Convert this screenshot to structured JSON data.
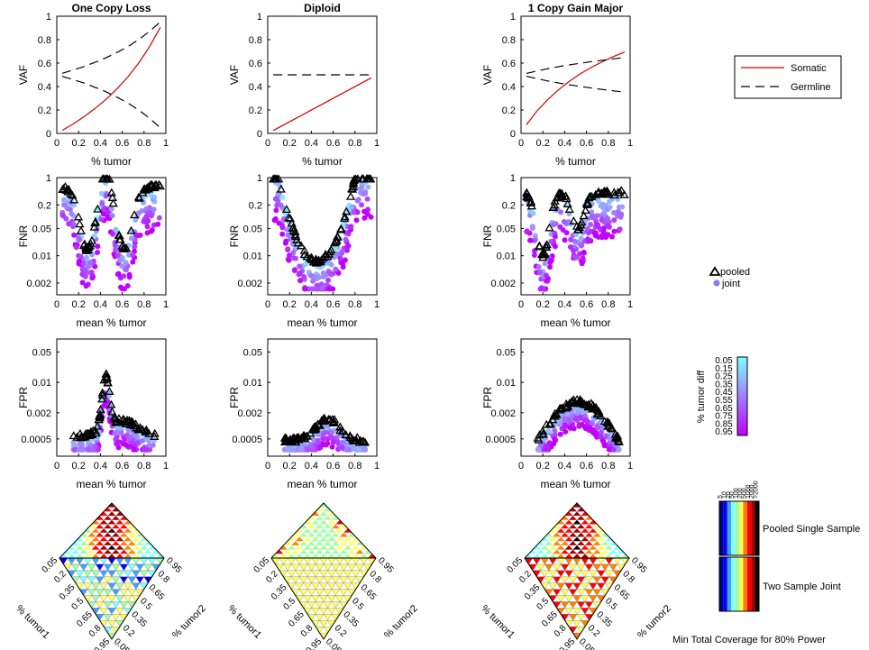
{
  "legend": {
    "somatic_label": "Somatic",
    "germline_label": "Germline",
    "pooled_label": "pooled",
    "joint_label": "joint",
    "somatic_color": "#d00000",
    "germline_color": "#000000"
  },
  "colorbar": {
    "title": "% tumor diff",
    "ticks": [
      "0.05",
      "0.15",
      "0.25",
      "0.35",
      "0.45",
      "0.55",
      "0.65",
      "0.75",
      "0.85",
      "0.95"
    ],
    "colors": [
      "#80ffff",
      "#c000ff"
    ]
  },
  "coverage_key": {
    "ticks": [
      "5",
      "10",
      "20",
      "50",
      "100",
      "200",
      "500",
      "1000",
      "2000",
      ">2000"
    ],
    "row1_label": "Pooled Single Sample",
    "row2_label": "Two Sample Joint",
    "footer": "Min Total Coverage for 80% Power",
    "colors": [
      "#000080",
      "#0000ff",
      "#40a0ff",
      "#80ffff",
      "#a0ffa0",
      "#ffff60",
      "#ff8000",
      "#ff0000",
      "#a00000",
      "#000000"
    ]
  },
  "chart_data": [
    {
      "type": "line",
      "panel": "vaf",
      "column": 0,
      "title": "One Copy Loss",
      "xlabel": "% tumor",
      "ylabel": "VAF",
      "xlim": [
        0,
        1
      ],
      "ylim": [
        0,
        1
      ],
      "xticks": [
        "0",
        "0.2",
        "0.4",
        "0.6",
        "0.8",
        "1"
      ],
      "yticks": [
        "0",
        "0.2",
        "0.4",
        "0.6",
        "0.8",
        "1"
      ],
      "x": [
        0.05,
        0.15,
        0.25,
        0.35,
        0.45,
        0.55,
        0.65,
        0.75,
        0.85,
        0.95
      ],
      "series": [
        {
          "name": "Somatic",
          "values": [
            0.026,
            0.081,
            0.143,
            0.212,
            0.29,
            0.379,
            0.481,
            0.6,
            0.739,
            0.905
          ]
        },
        {
          "name": "Germline upper",
          "values": [
            0.513,
            0.541,
            0.571,
            0.606,
            0.645,
            0.69,
            0.74,
            0.8,
            0.87,
            0.952
          ]
        },
        {
          "name": "Germline lower",
          "values": [
            0.487,
            0.459,
            0.429,
            0.394,
            0.355,
            0.31,
            0.26,
            0.2,
            0.13,
            0.048
          ]
        }
      ]
    },
    {
      "type": "line",
      "panel": "vaf",
      "column": 1,
      "title": "Diploid",
      "xlabel": "% tumor",
      "ylabel": "VAF",
      "xlim": [
        0,
        1
      ],
      "ylim": [
        0,
        1
      ],
      "xticks": [
        "0",
        "0.2",
        "0.4",
        "0.6",
        "0.8",
        "1"
      ],
      "yticks": [
        "0",
        "0.2",
        "0.4",
        "0.6",
        "0.8",
        "1"
      ],
      "x": [
        0.05,
        0.15,
        0.25,
        0.35,
        0.45,
        0.55,
        0.65,
        0.75,
        0.85,
        0.95
      ],
      "series": [
        {
          "name": "Somatic",
          "values": [
            0.025,
            0.075,
            0.125,
            0.175,
            0.225,
            0.275,
            0.325,
            0.375,
            0.425,
            0.475
          ]
        },
        {
          "name": "Germline",
          "values": [
            0.5,
            0.5,
            0.5,
            0.5,
            0.5,
            0.5,
            0.5,
            0.5,
            0.5,
            0.5
          ]
        }
      ]
    },
    {
      "type": "line",
      "panel": "vaf",
      "column": 2,
      "title": "1 Copy Gain Major",
      "xlabel": "% tumor",
      "ylabel": "VAF",
      "xlim": [
        0,
        1
      ],
      "ylim": [
        0,
        1
      ],
      "xticks": [
        "0",
        "0.2",
        "0.4",
        "0.6",
        "0.8",
        "1"
      ],
      "yticks": [
        "0",
        "0.2",
        "0.4",
        "0.6",
        "0.8",
        "1"
      ],
      "x": [
        0.05,
        0.15,
        0.25,
        0.35,
        0.45,
        0.55,
        0.65,
        0.75,
        0.85,
        0.95
      ],
      "series": [
        {
          "name": "Somatic",
          "values": [
            0.073,
            0.196,
            0.294,
            0.378,
            0.45,
            0.512,
            0.566,
            0.614,
            0.657,
            0.695
          ]
        },
        {
          "name": "Germline upper",
          "values": [
            0.512,
            0.533,
            0.553,
            0.571,
            0.586,
            0.6,
            0.613,
            0.625,
            0.637,
            0.648
          ]
        },
        {
          "name": "Germline lower",
          "values": [
            0.488,
            0.467,
            0.447,
            0.429,
            0.414,
            0.4,
            0.387,
            0.375,
            0.363,
            0.352
          ]
        }
      ]
    },
    {
      "type": "scatter",
      "panel": "fnr",
      "column": 0,
      "xlabel": "mean % tumor",
      "ylabel": "FNR",
      "xlim": [
        0,
        1
      ],
      "yscale": "log",
      "ylim": [
        0.001,
        1
      ],
      "xticks": [
        "0",
        "0.2",
        "0.4",
        "0.6",
        "0.8",
        "1"
      ],
      "yticks": [
        "0.002",
        "0.01",
        "0.05",
        "0.2",
        "1"
      ]
    },
    {
      "type": "scatter",
      "panel": "fnr",
      "column": 1,
      "xlabel": "mean % tumor",
      "ylabel": "FNR",
      "xlim": [
        0,
        1
      ],
      "yscale": "log",
      "ylim": [
        0.001,
        1
      ],
      "xticks": [
        "0",
        "0.2",
        "0.4",
        "0.6",
        "0.8",
        "1"
      ],
      "yticks": [
        "0.002",
        "0.01",
        "0.05",
        "0.2",
        "1"
      ]
    },
    {
      "type": "scatter",
      "panel": "fnr",
      "column": 2,
      "xlabel": "mean % tumor",
      "ylabel": "FNR",
      "xlim": [
        0,
        1
      ],
      "yscale": "log",
      "ylim": [
        0.001,
        1
      ],
      "xticks": [
        "0",
        "0.2",
        "0.4",
        "0.6",
        "0.8",
        "1"
      ],
      "yticks": [
        "0.002",
        "0.01",
        "0.05",
        "0.2",
        "1"
      ]
    },
    {
      "type": "scatter",
      "panel": "fpr",
      "column": 0,
      "xlabel": "mean % tumor",
      "ylabel": "FPR",
      "xlim": [
        0,
        1
      ],
      "yscale": "log",
      "ylim": [
        0.0002,
        0.1
      ],
      "xticks": [
        "0",
        "0.2",
        "0.4",
        "0.6",
        "0.8",
        "1"
      ],
      "yticks": [
        "0.0005",
        "0.002",
        "0.01",
        "0.05"
      ]
    },
    {
      "type": "scatter",
      "panel": "fpr",
      "column": 1,
      "xlabel": "mean % tumor",
      "ylabel": "FPR",
      "xlim": [
        0,
        1
      ],
      "yscale": "log",
      "ylim": [
        0.0002,
        0.1
      ],
      "xticks": [
        "0",
        "0.2",
        "0.4",
        "0.6",
        "0.8",
        "1"
      ],
      "yticks": [
        "0.0005",
        "0.002",
        "0.01",
        "0.05"
      ]
    },
    {
      "type": "scatter",
      "panel": "fpr",
      "column": 2,
      "xlabel": "mean % tumor",
      "ylabel": "FPR",
      "xlim": [
        0,
        1
      ],
      "yscale": "log",
      "ylim": [
        0.0002,
        0.1
      ],
      "xticks": [
        "0",
        "0.2",
        "0.4",
        "0.6",
        "0.8",
        "1"
      ],
      "yticks": [
        "0.0005",
        "0.002",
        "0.01",
        "0.05"
      ]
    },
    {
      "type": "heatmap",
      "panel": "coverage",
      "column": 0,
      "xlabel": "% tumor1",
      "ylabel": "% tumor2",
      "tumor1_ticks": [
        "0.05",
        "0.2",
        "0.35",
        "0.5",
        "0.65",
        "0.8",
        "0.95"
      ],
      "tumor2_ticks": [
        "0.95",
        "0.8",
        "0.65",
        "0.5",
        "0.35",
        "0.2",
        "0.05"
      ]
    },
    {
      "type": "heatmap",
      "panel": "coverage",
      "column": 1,
      "xlabel": "% tumor1",
      "ylabel": "% tumor2",
      "tumor1_ticks": [
        "0.05",
        "0.2",
        "0.35",
        "0.5",
        "0.65",
        "0.8",
        "0.95"
      ],
      "tumor2_ticks": [
        "0.95",
        "0.8",
        "0.65",
        "0.5",
        "0.35",
        "0.2",
        "0.05"
      ]
    },
    {
      "type": "heatmap",
      "panel": "coverage",
      "column": 2,
      "xlabel": "% tumor1",
      "ylabel": "% tumor2",
      "tumor1_ticks": [
        "0.05",
        "0.2",
        "0.35",
        "0.5",
        "0.65",
        "0.8",
        "0.95"
      ],
      "tumor2_ticks": [
        "0.95",
        "0.8",
        "0.65",
        "0.5",
        "0.35",
        "0.2",
        "0.05"
      ]
    }
  ]
}
